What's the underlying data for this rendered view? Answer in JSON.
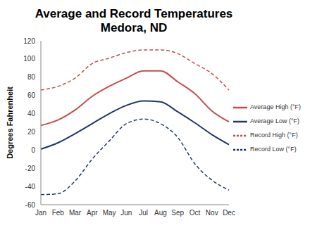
{
  "chart_data": {
    "type": "line",
    "title": "Average and Record Temperatures",
    "subtitle": "Medora, ND",
    "y_label": "Degrees Fahrenheit",
    "categories": [
      "Jan",
      "Feb",
      "Mar",
      "Apr",
      "May",
      "Jun",
      "Jul",
      "Aug",
      "Sep",
      "Oct",
      "Nov",
      "Dec"
    ],
    "series": [
      {
        "name": "Record High (°F)",
        "color": "#c0504d",
        "line_style": "dashed",
        "values": [
          66,
          70,
          79,
          95,
          101,
          107,
          110,
          110,
          106,
          95,
          84,
          66
        ]
      },
      {
        "name": "Average High (°F)",
        "color": "#c0504d",
        "line_style": "solid",
        "values": [
          27,
          33,
          44,
          59,
          70,
          79,
          87,
          87,
          75,
          62,
          43,
          31
        ]
      },
      {
        "name": "Average Low (°F)",
        "color": "#1f3864",
        "line_style": "solid",
        "values": [
          1,
          8,
          18,
          29,
          40,
          49,
          54,
          53,
          42,
          30,
          17,
          6
        ]
      },
      {
        "name": "Record Low (°F)",
        "color": "#1f3864",
        "line_style": "dashed",
        "values": [
          -49,
          -48,
          -34,
          -10,
          10,
          29,
          34,
          29,
          14,
          -15,
          -33,
          -44
        ]
      }
    ],
    "ylim": [
      -60,
      120
    ],
    "yticks": [
      -60,
      -40,
      -20,
      0,
      20,
      40,
      60,
      80,
      100,
      120
    ],
    "grid": false,
    "legend": "right",
    "marker": "none"
  }
}
